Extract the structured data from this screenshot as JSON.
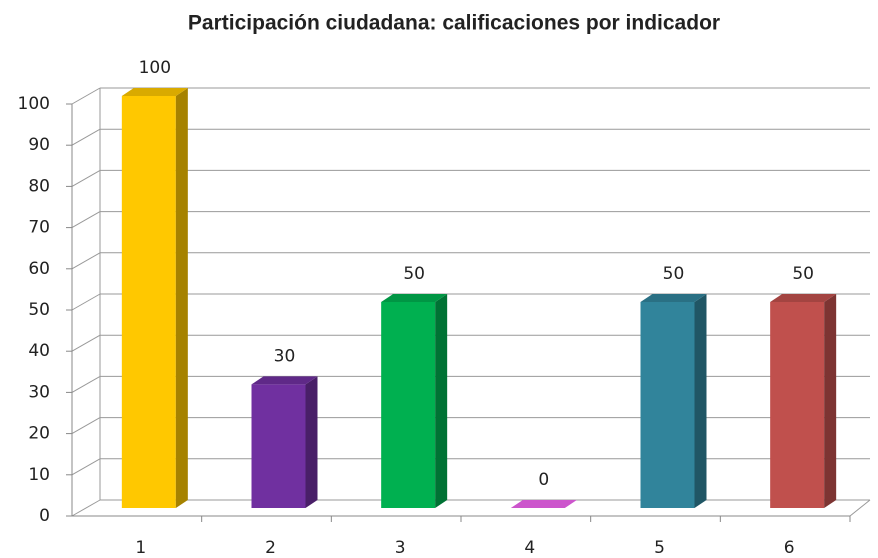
{
  "chart_data": {
    "type": "bar3d",
    "title": "Participación ciudadana: calificaciones por indicador",
    "categories": [
      "1",
      "2",
      "3",
      "4",
      "5",
      "6"
    ],
    "values": [
      100,
      30,
      50,
      0,
      50,
      50
    ],
    "colors": [
      "#ffc800",
      "#7030a0",
      "#00b050",
      "#cc55cc",
      "#31849b",
      "#c0504d"
    ],
    "ylim": [
      0,
      100
    ],
    "yticks": [
      0,
      10,
      20,
      30,
      40,
      50,
      60,
      70,
      80,
      90,
      100
    ],
    "grid": true,
    "data_labels": true
  }
}
